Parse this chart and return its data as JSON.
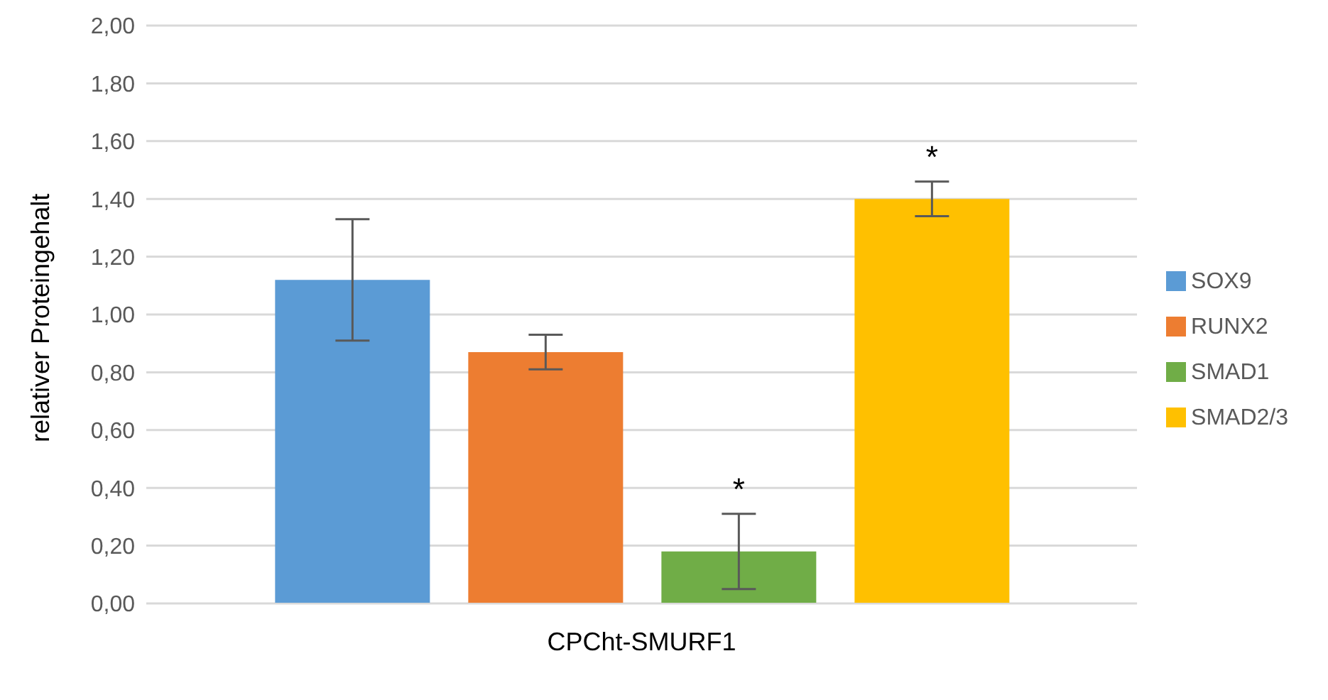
{
  "chart_data": {
    "type": "bar",
    "ylabel": "relativer Proteingehalt",
    "categories": [
      "CPCht-SMURF1"
    ],
    "series": [
      {
        "name": "SOX9",
        "color": "#5b9bd5",
        "values": [
          1.12
        ],
        "errors": [
          0.21
        ]
      },
      {
        "name": "RUNX2",
        "color": "#ed7d31",
        "values": [
          0.87
        ],
        "errors": [
          0.06
        ]
      },
      {
        "name": "SMAD1",
        "color": "#70ad47",
        "values": [
          0.18
        ],
        "errors": [
          0.13
        ],
        "value_labels": [
          "*"
        ]
      },
      {
        "name": "SMAD2/3",
        "color": "#ffc000",
        "values": [
          1.4
        ],
        "errors": [
          0.06
        ],
        "value_labels": [
          "*"
        ]
      }
    ],
    "ylim": [
      0,
      2
    ],
    "yticks": [
      {
        "value": 0,
        "label": "0,00"
      },
      {
        "value": 0.2,
        "label": "0,20"
      },
      {
        "value": 0.4,
        "label": "0,40"
      },
      {
        "value": 0.6,
        "label": "0,60"
      },
      {
        "value": 0.8,
        "label": "0,80"
      },
      {
        "value": 1,
        "label": "1,00"
      },
      {
        "value": 1.2,
        "label": "1,20"
      },
      {
        "value": 1.4,
        "label": "1,40"
      },
      {
        "value": 1.6,
        "label": "1,60"
      },
      {
        "value": 1.8,
        "label": "1,80"
      },
      {
        "value": 2,
        "label": "2,00"
      }
    ],
    "grid": "y",
    "legend": "right"
  }
}
